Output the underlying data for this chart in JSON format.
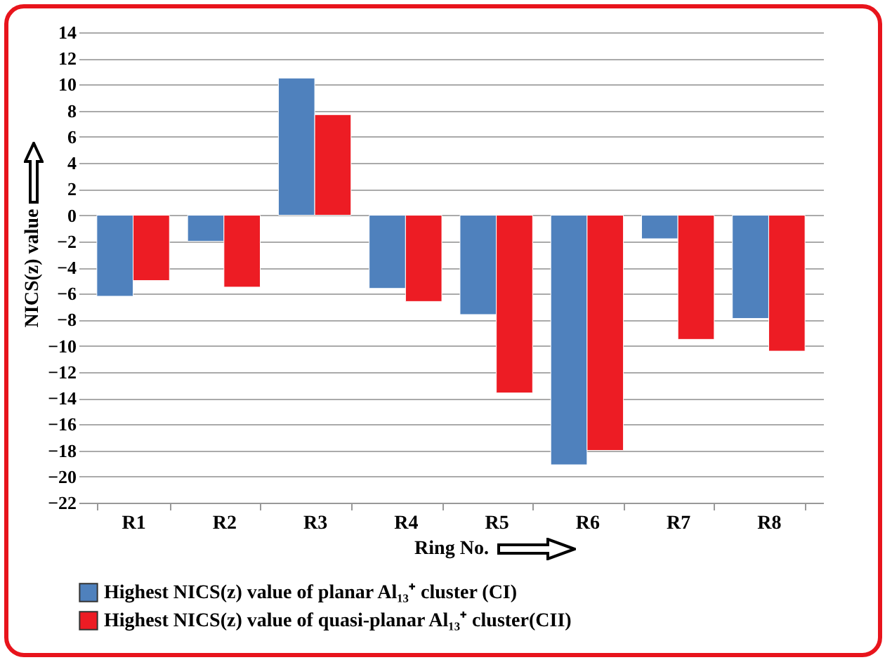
{
  "chart_data": {
    "type": "bar",
    "xlabel": "Ring No.",
    "ylabel": "NICS(z) value",
    "categories": [
      "R1",
      "R2",
      "R3",
      "R4",
      "R5",
      "R6",
      "R7",
      "R8"
    ],
    "series": [
      {
        "name": "Highest NICS(z) value of planar Al₁₃⁺ cluster (CI)",
        "color": "#4f81bd",
        "values": [
          -6.2,
          -2.0,
          10.5,
          -5.6,
          -7.6,
          -19.1,
          -1.8,
          -7.9
        ]
      },
      {
        "name": "Highest NICS(z) value of quasi-planar Al₁₃⁺ cluster(CII)",
        "color": "#ed1c24",
        "values": [
          -5.0,
          -5.5,
          7.7,
          -6.6,
          -13.6,
          -18.0,
          -9.5,
          -10.4
        ]
      }
    ],
    "ylim": [
      -22,
      14
    ],
    "yticks": [
      -22,
      -20,
      -18,
      -16,
      -14,
      -12,
      -10,
      -8,
      -6,
      -4,
      -2,
      0,
      2,
      4,
      6,
      8,
      10,
      12,
      14
    ],
    "grid": "y",
    "legend": "bottom"
  }
}
